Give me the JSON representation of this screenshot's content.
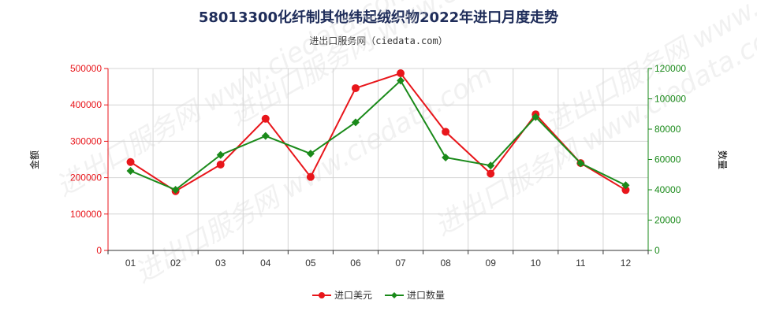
{
  "chart_data": {
    "type": "line",
    "title": "58013300化纤制其他纬起绒织物2022年进口月度走势",
    "subtitle": "进出口服务网（ciedata.com）",
    "watermark": "进出口服务网 www.ciedata.com",
    "categories": [
      "01",
      "02",
      "03",
      "04",
      "05",
      "06",
      "07",
      "08",
      "09",
      "10",
      "11",
      "12"
    ],
    "y_left": {
      "label": "金额",
      "min": 0,
      "max": 500000,
      "ticks": [
        0,
        100000,
        200000,
        300000,
        400000,
        500000
      ],
      "color": "#e8161b"
    },
    "y_right": {
      "label": "数量",
      "min": 0,
      "max": 120000,
      "ticks": [
        0,
        20000,
        40000,
        60000,
        80000,
        100000,
        120000
      ],
      "color": "#1a8a1a"
    },
    "series": [
      {
        "name": "进口美元",
        "axis": "left",
        "color": "#e8161b",
        "values": [
          243000,
          163000,
          236000,
          362000,
          202000,
          446000,
          487000,
          326000,
          211000,
          374000,
          240000,
          166000
        ]
      },
      {
        "name": "进口数量",
        "axis": "right",
        "color": "#1a8a1a",
        "values": [
          52500,
          40000,
          63000,
          75500,
          63800,
          84500,
          112000,
          61300,
          56000,
          88000,
          57500,
          43000
        ]
      }
    ],
    "grid": true,
    "legend_position": "bottom-center"
  }
}
